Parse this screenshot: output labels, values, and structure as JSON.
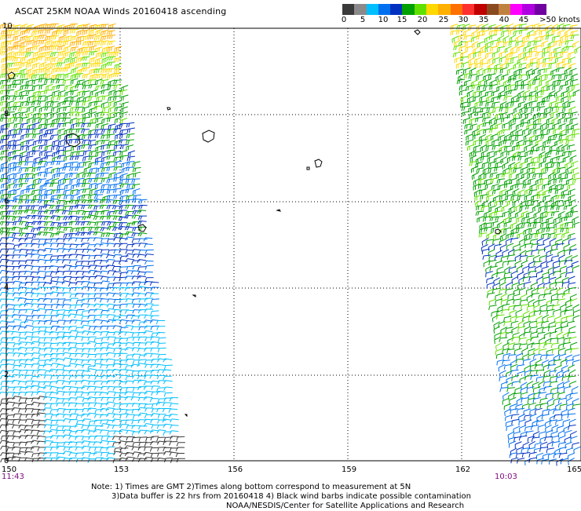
{
  "title": "ASCAT 25KM NOAA Winds 20160418 ascending",
  "legend": {
    "colors": [
      "#3a3a3a",
      "#8a8a8a",
      "#00bfff",
      "#0070f0",
      "#0030c0",
      "#00a000",
      "#60e000",
      "#ffd800",
      "#ffb000",
      "#ff7000",
      "#ff3030",
      "#c00000",
      "#8a4a20",
      "#c08040",
      "#ff00ff",
      "#b000e0",
      "#7000a0"
    ],
    "ticks": [
      "0",
      "5",
      "10",
      "15",
      "20",
      "25",
      "30",
      "35",
      "40",
      "45",
      ">50 knots"
    ]
  },
  "axes": {
    "x_labels": [
      "150",
      "153",
      "156",
      "159",
      "162",
      "165"
    ],
    "y_labels": [
      "10",
      "8",
      "6",
      "4",
      "2",
      "0"
    ]
  },
  "times": {
    "left": "11:43",
    "right": "10:03"
  },
  "notes": {
    "line1": "Note: 1) Times are GMT 2)Times along bottom correspond to measurement at 5N",
    "line2": "3)Data buffer is 22 hrs from 20160418 4) Black wind barbs indicate possible contamination",
    "line3": "NOAA/NESDIS/Center for Satellite Applications and Research"
  }
}
